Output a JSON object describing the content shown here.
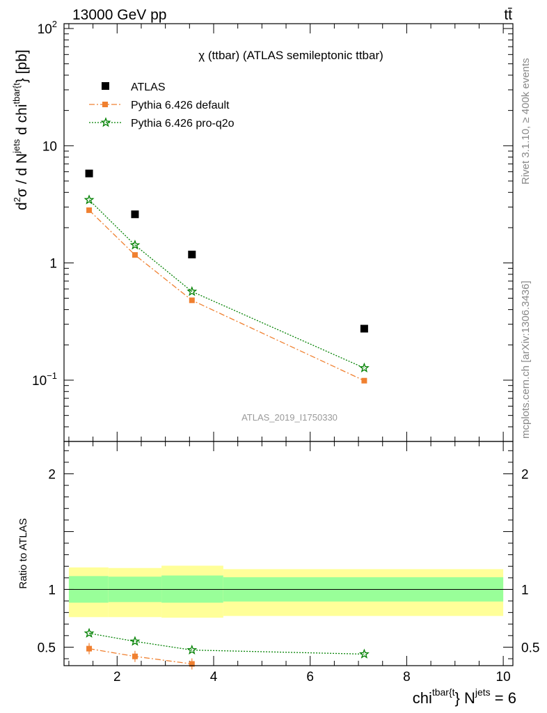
{
  "header": {
    "energy_label": "13000 GeV pp",
    "process_label": "tt̄"
  },
  "side_labels": {
    "rivet": "Rivet 3.1.10, ≥ 400k events",
    "mcplots": "mcplots.cern.ch [arXiv:1306.3436]"
  },
  "chart_data": [
    {
      "type": "scatter",
      "panel": "main",
      "title": "χ (ttbar) (ATLAS semileptonic ttbar)",
      "watermark": "ATLAS_2019_I1750330",
      "ylabel": {
        "d2": "d",
        "sup2": "2",
        "sigma": "σ / d N",
        "jets": "jets",
        "dchi": " d chi",
        "tbar": "tbar{t",
        "close": "} [pb]"
      },
      "yscale": "log",
      "ylim": [
        0.03,
        110
      ],
      "xlim": [
        0.9,
        10.2
      ],
      "yticks": [
        {
          "value": 0.1,
          "base": "10",
          "exp": "−1"
        },
        {
          "value": 1,
          "base": "1",
          "exp": ""
        },
        {
          "value": 10,
          "base": "10",
          "exp": ""
        },
        {
          "value": 100,
          "base": "10",
          "exp": "2"
        }
      ],
      "legend_position": "top-left",
      "series": [
        {
          "name": "ATLAS",
          "marker": "square",
          "color": "#000000",
          "line": "none",
          "x": [
            1.42,
            2.37,
            3.55,
            7.12
          ],
          "values": [
            5.8,
            2.6,
            1.18,
            0.275
          ]
        },
        {
          "name": "Pythia 6.426 default",
          "marker": "filled-square",
          "color": "#f08030",
          "line": "dashdot",
          "x": [
            1.42,
            2.37,
            3.55,
            7.12
          ],
          "values": [
            2.82,
            1.17,
            0.48,
            0.099
          ]
        },
        {
          "name": "Pythia 6.426 pro-q2o",
          "marker": "star",
          "color": "#008000",
          "line": "dotted",
          "x": [
            1.42,
            2.37,
            3.55,
            7.12
          ],
          "values": [
            3.45,
            1.42,
            0.57,
            0.127
          ]
        }
      ]
    },
    {
      "type": "line",
      "panel": "ratio",
      "ylabel": "Ratio to ATLAS",
      "xlabel": {
        "chi": "chi",
        "tbar": "tbar{t",
        "mid": "} N",
        "jets": "jets",
        "eq": " = 6"
      },
      "ylim": [
        0.34,
        2.28
      ],
      "xlim": [
        0.9,
        10.2
      ],
      "yticks": [
        {
          "value": 0.5,
          "label": "0.5"
        },
        {
          "value": 1,
          "label": "1"
        },
        {
          "value": 2,
          "label": "2"
        }
      ],
      "xticks": [
        {
          "value": 2,
          "label": "2"
        },
        {
          "value": 4,
          "label": "4"
        },
        {
          "value": 6,
          "label": "6"
        },
        {
          "value": 8,
          "label": "8"
        },
        {
          "value": 10,
          "label": "10"
        }
      ],
      "uncertainty_bands": [
        {
          "x0": 1.0,
          "x1": 1.82,
          "inner": [
            0.885,
            1.115
          ],
          "outer": [
            0.76,
            1.19
          ]
        },
        {
          "x0": 1.82,
          "x1": 2.92,
          "inner": [
            0.89,
            1.11
          ],
          "outer": [
            0.76,
            1.185
          ]
        },
        {
          "x0": 2.92,
          "x1": 4.2,
          "inner": [
            0.885,
            1.12
          ],
          "outer": [
            0.755,
            1.205
          ]
        },
        {
          "x0": 4.2,
          "x1": 10.0,
          "inner": [
            0.895,
            1.105
          ],
          "outer": [
            0.77,
            1.175
          ]
        }
      ],
      "series": [
        {
          "name": "Pythia 6.426 default",
          "marker": "filled-square",
          "color": "#f08030",
          "line": "dashdot",
          "x": [
            1.42,
            2.37,
            3.55
          ],
          "values": [
            0.487,
            0.42,
            0.355
          ]
        },
        {
          "name": "Pythia 6.426 pro-q2o",
          "marker": "star",
          "color": "#008000",
          "line": "dotted",
          "x": [
            1.42,
            2.37,
            3.55,
            7.12
          ],
          "values": [
            0.62,
            0.55,
            0.475,
            0.44
          ]
        }
      ]
    }
  ],
  "colors": {
    "band_outer": "#ffff99",
    "band_inner": "#99ff99",
    "watermark": "#999999"
  }
}
